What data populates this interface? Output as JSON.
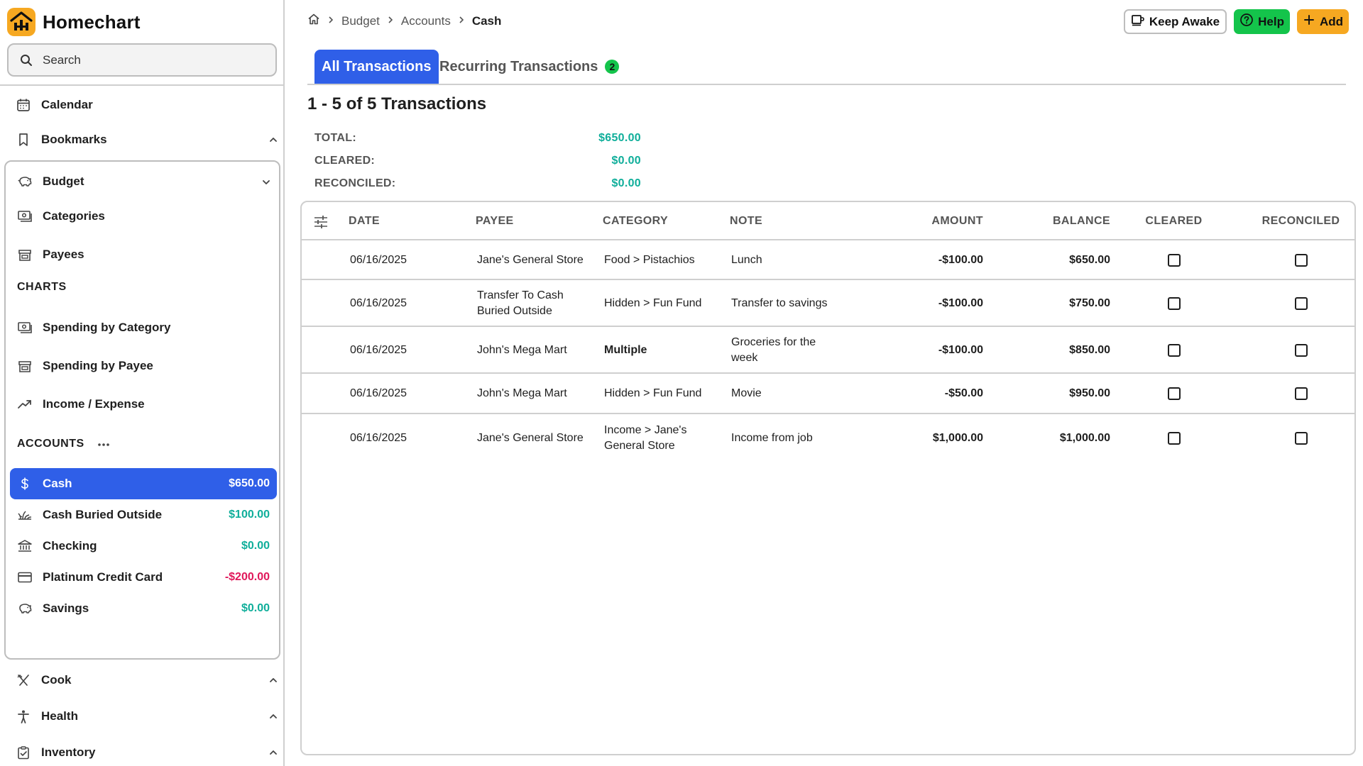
{
  "app": {
    "name": "Homechart"
  },
  "search": {
    "placeholder": "Search"
  },
  "nav": {
    "calendar": "Calendar",
    "bookmarks": "Bookmarks",
    "budget": "Budget",
    "categories": "Categories",
    "payees": "Payees",
    "charts_label": "CHARTS",
    "spending_by_category": "Spending by Category",
    "spending_by_payee": "Spending by Payee",
    "income_expense": "Income / Expense",
    "accounts_label": "ACCOUNTS",
    "cook": "Cook",
    "health": "Health",
    "inventory": "Inventory"
  },
  "accounts": [
    {
      "name": "Cash",
      "amount": "$650.00",
      "status": "active"
    },
    {
      "name": "Cash Buried Outside",
      "amount": "$100.00",
      "status": "positive"
    },
    {
      "name": "Checking",
      "amount": "$0.00",
      "status": "positive"
    },
    {
      "name": "Platinum Credit Card",
      "amount": "-$200.00",
      "status": "negative"
    },
    {
      "name": "Savings",
      "amount": "$0.00",
      "status": "positive"
    }
  ],
  "breadcrumb": {
    "budget": "Budget",
    "accounts": "Accounts",
    "current": "Cash"
  },
  "actions": {
    "keep_awake": "Keep Awake",
    "help": "Help",
    "add": "Add"
  },
  "tabs": {
    "all": "All Transactions",
    "recurring": "Recurring Transactions",
    "recurring_count": "2"
  },
  "summary": {
    "title": "1 - 5 of 5 Transactions",
    "total_label": "TOTAL:",
    "total": "$650.00",
    "cleared_label": "CLEARED:",
    "cleared": "$0.00",
    "reconciled_label": "RECONCILED:",
    "reconciled": "$0.00"
  },
  "table": {
    "headers": {
      "date": "DATE",
      "payee": "PAYEE",
      "category": "CATEGORY",
      "note": "NOTE",
      "amount": "AMOUNT",
      "balance": "BALANCE",
      "cleared": "CLEARED",
      "reconciled": "RECONCILED"
    },
    "rows": [
      {
        "date": "06/16/2025",
        "payee": "Jane's General Store",
        "category": "Food > Pistachios",
        "note": "Lunch",
        "amount": "-$100.00",
        "balance": "$650.00",
        "cleared": false,
        "reconciled": false
      },
      {
        "date": "06/16/2025",
        "payee": "Transfer To Cash Buried Outside",
        "category": "Hidden > Fun Fund",
        "note": "Transfer to savings",
        "amount": "-$100.00",
        "balance": "$750.00",
        "cleared": false,
        "reconciled": false
      },
      {
        "date": "06/16/2025",
        "payee": "John's Mega Mart",
        "category": "Multiple",
        "note": "Groceries for the week",
        "amount": "-$100.00",
        "balance": "$850.00",
        "cleared": false,
        "reconciled": false
      },
      {
        "date": "06/16/2025",
        "payee": "John's Mega Mart",
        "category": "Hidden > Fun Fund",
        "note": "Movie",
        "amount": "-$50.00",
        "balance": "$950.00",
        "cleared": false,
        "reconciled": false
      },
      {
        "date": "06/16/2025",
        "payee": "Jane's General Store",
        "category": "Income > Jane's General Store",
        "note": "Income from job",
        "amount": "$1,000.00",
        "balance": "$1,000.00",
        "cleared": false,
        "reconciled": false
      }
    ]
  },
  "colors": {
    "accent": "#2f5fe8",
    "positive": "#0fae9a",
    "negative": "#e0185a",
    "brand": "#f6a821",
    "help": "#14c44b"
  }
}
